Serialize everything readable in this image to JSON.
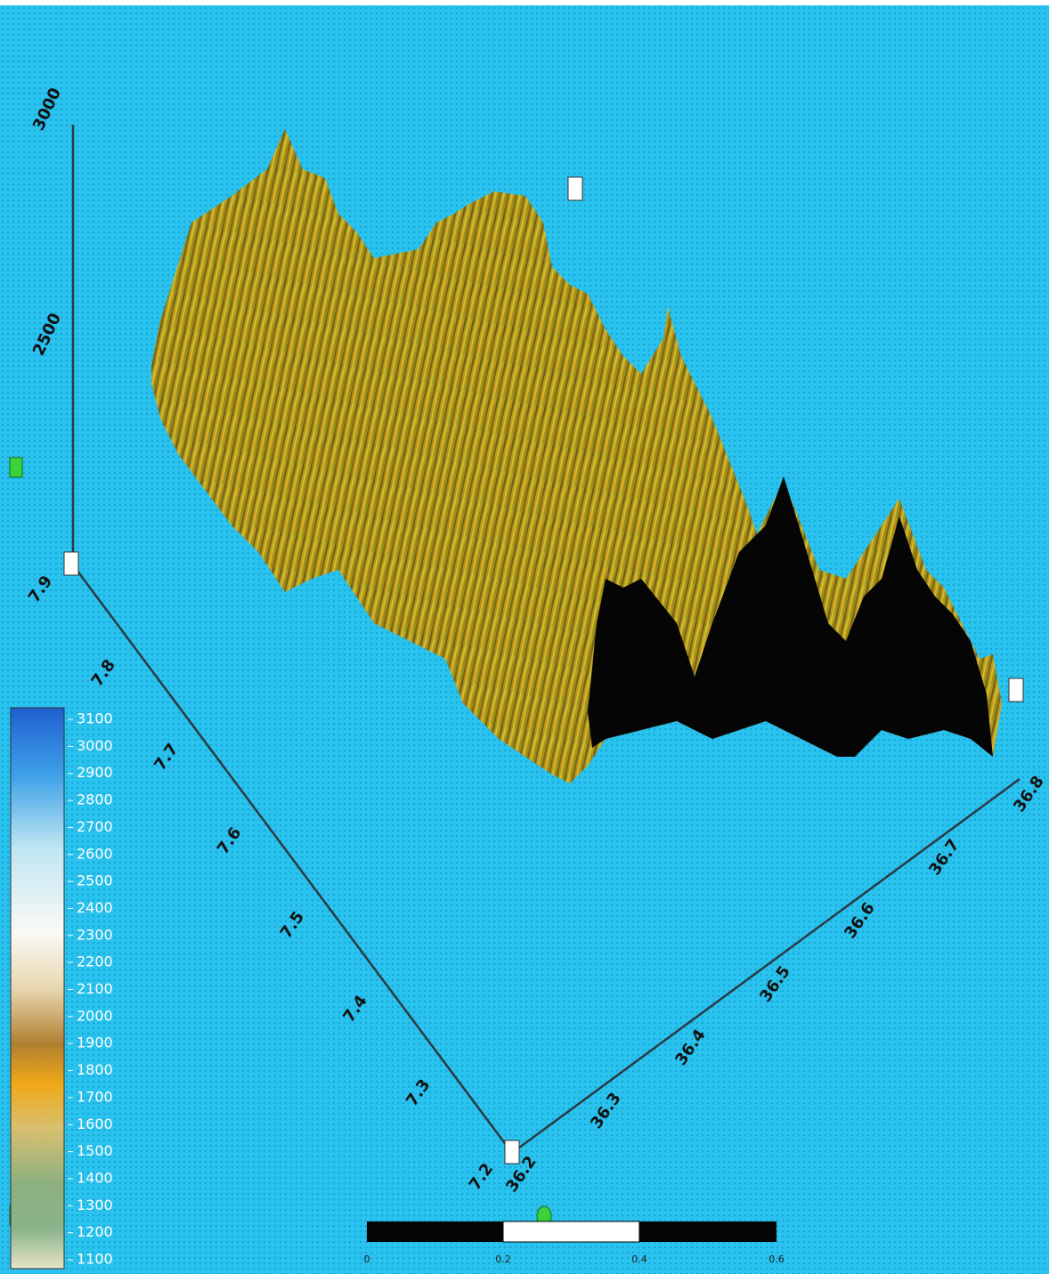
{
  "vertical_axis": {
    "labels": [
      "3000",
      "2500"
    ]
  },
  "left_axis": {
    "labels": [
      "7.9",
      "7.8",
      "7.7",
      "7.6",
      "7.5",
      "7.4",
      "7.3",
      "7.2"
    ]
  },
  "right_axis": {
    "labels": [
      "36.2",
      "36.3",
      "36.4",
      "36.5",
      "36.6",
      "36.7",
      "36.8"
    ]
  },
  "colorbar": {
    "labels": [
      "3100",
      "3000",
      "2900",
      "2800",
      "2700",
      "2600",
      "2500",
      "2400",
      "2300",
      "2200",
      "2100",
      "2000",
      "1900",
      "1800",
      "1700",
      "1600",
      "1500",
      "1400",
      "1300",
      "1200",
      "1100"
    ]
  },
  "scale_bar": {
    "labels": [
      "0",
      "0.2",
      "0.4",
      "0.6"
    ]
  }
}
